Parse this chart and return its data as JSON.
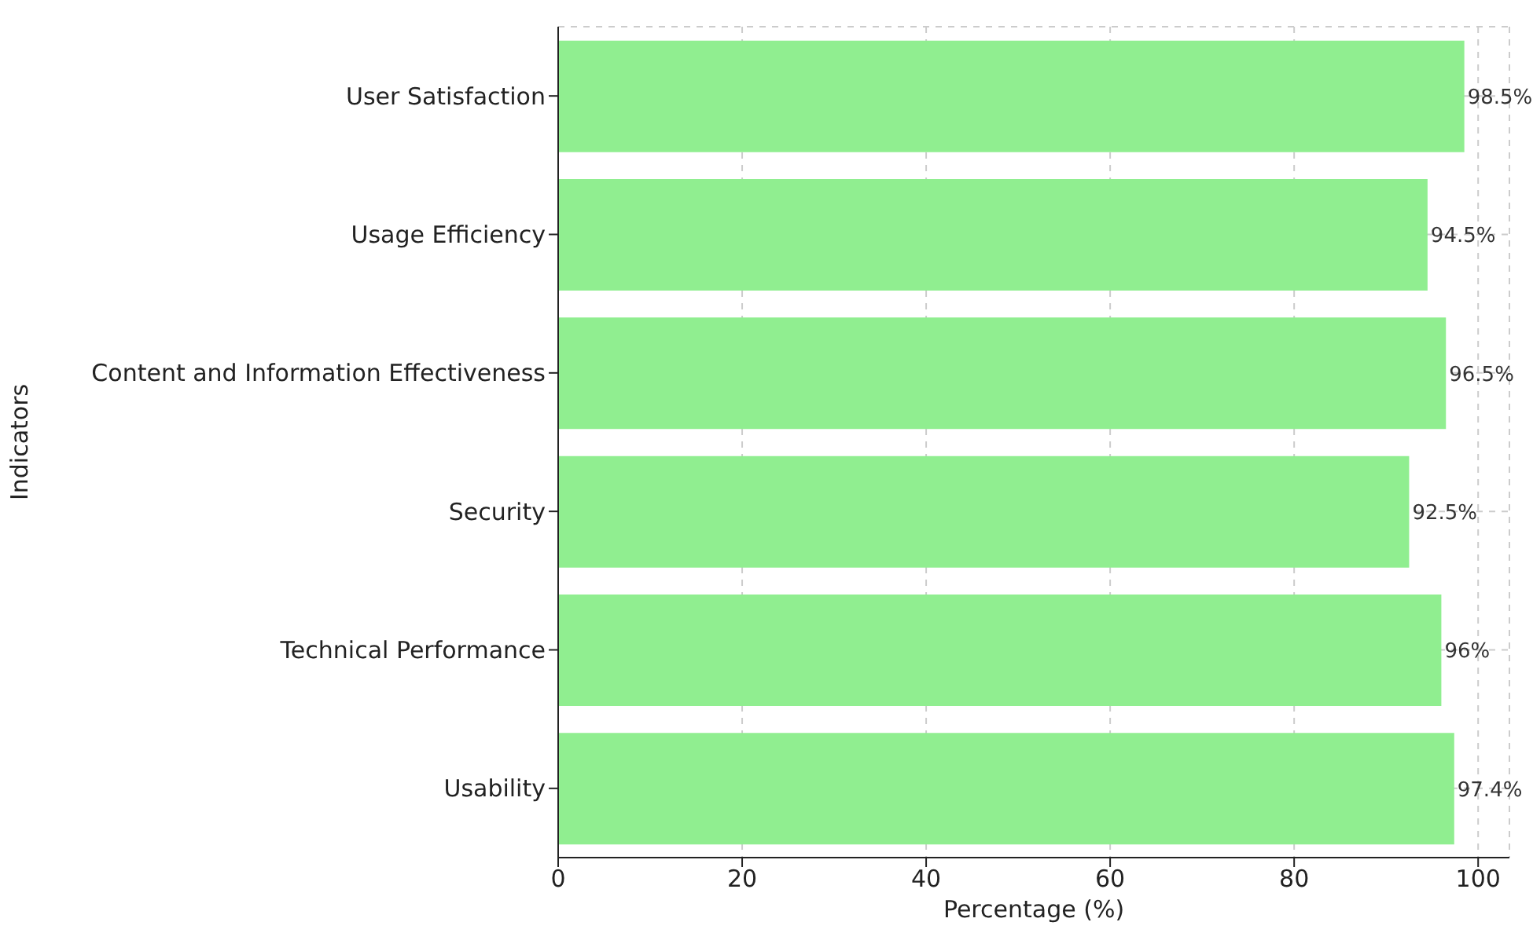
{
  "chart_data": {
    "type": "bar",
    "orientation": "horizontal",
    "xlabel": "Percentage (%)",
    "ylabel": "Indicators",
    "categories": [
      "User Satisfaction",
      "Usage Efficiency",
      "Content and Information Effectiveness",
      "Security",
      "Technical Performance",
      "Usability"
    ],
    "values": [
      98.5,
      94.5,
      96.5,
      92.5,
      96,
      97.4
    ],
    "value_labels": [
      "98.5%",
      "94.5%",
      "96.5%",
      "92.5%",
      "96%",
      "97.4%"
    ],
    "color": "#90ee90",
    "xlim": [
      0,
      103.4
    ],
    "xticks": [
      0,
      20,
      40,
      60,
      80,
      100
    ],
    "grid": true
  }
}
